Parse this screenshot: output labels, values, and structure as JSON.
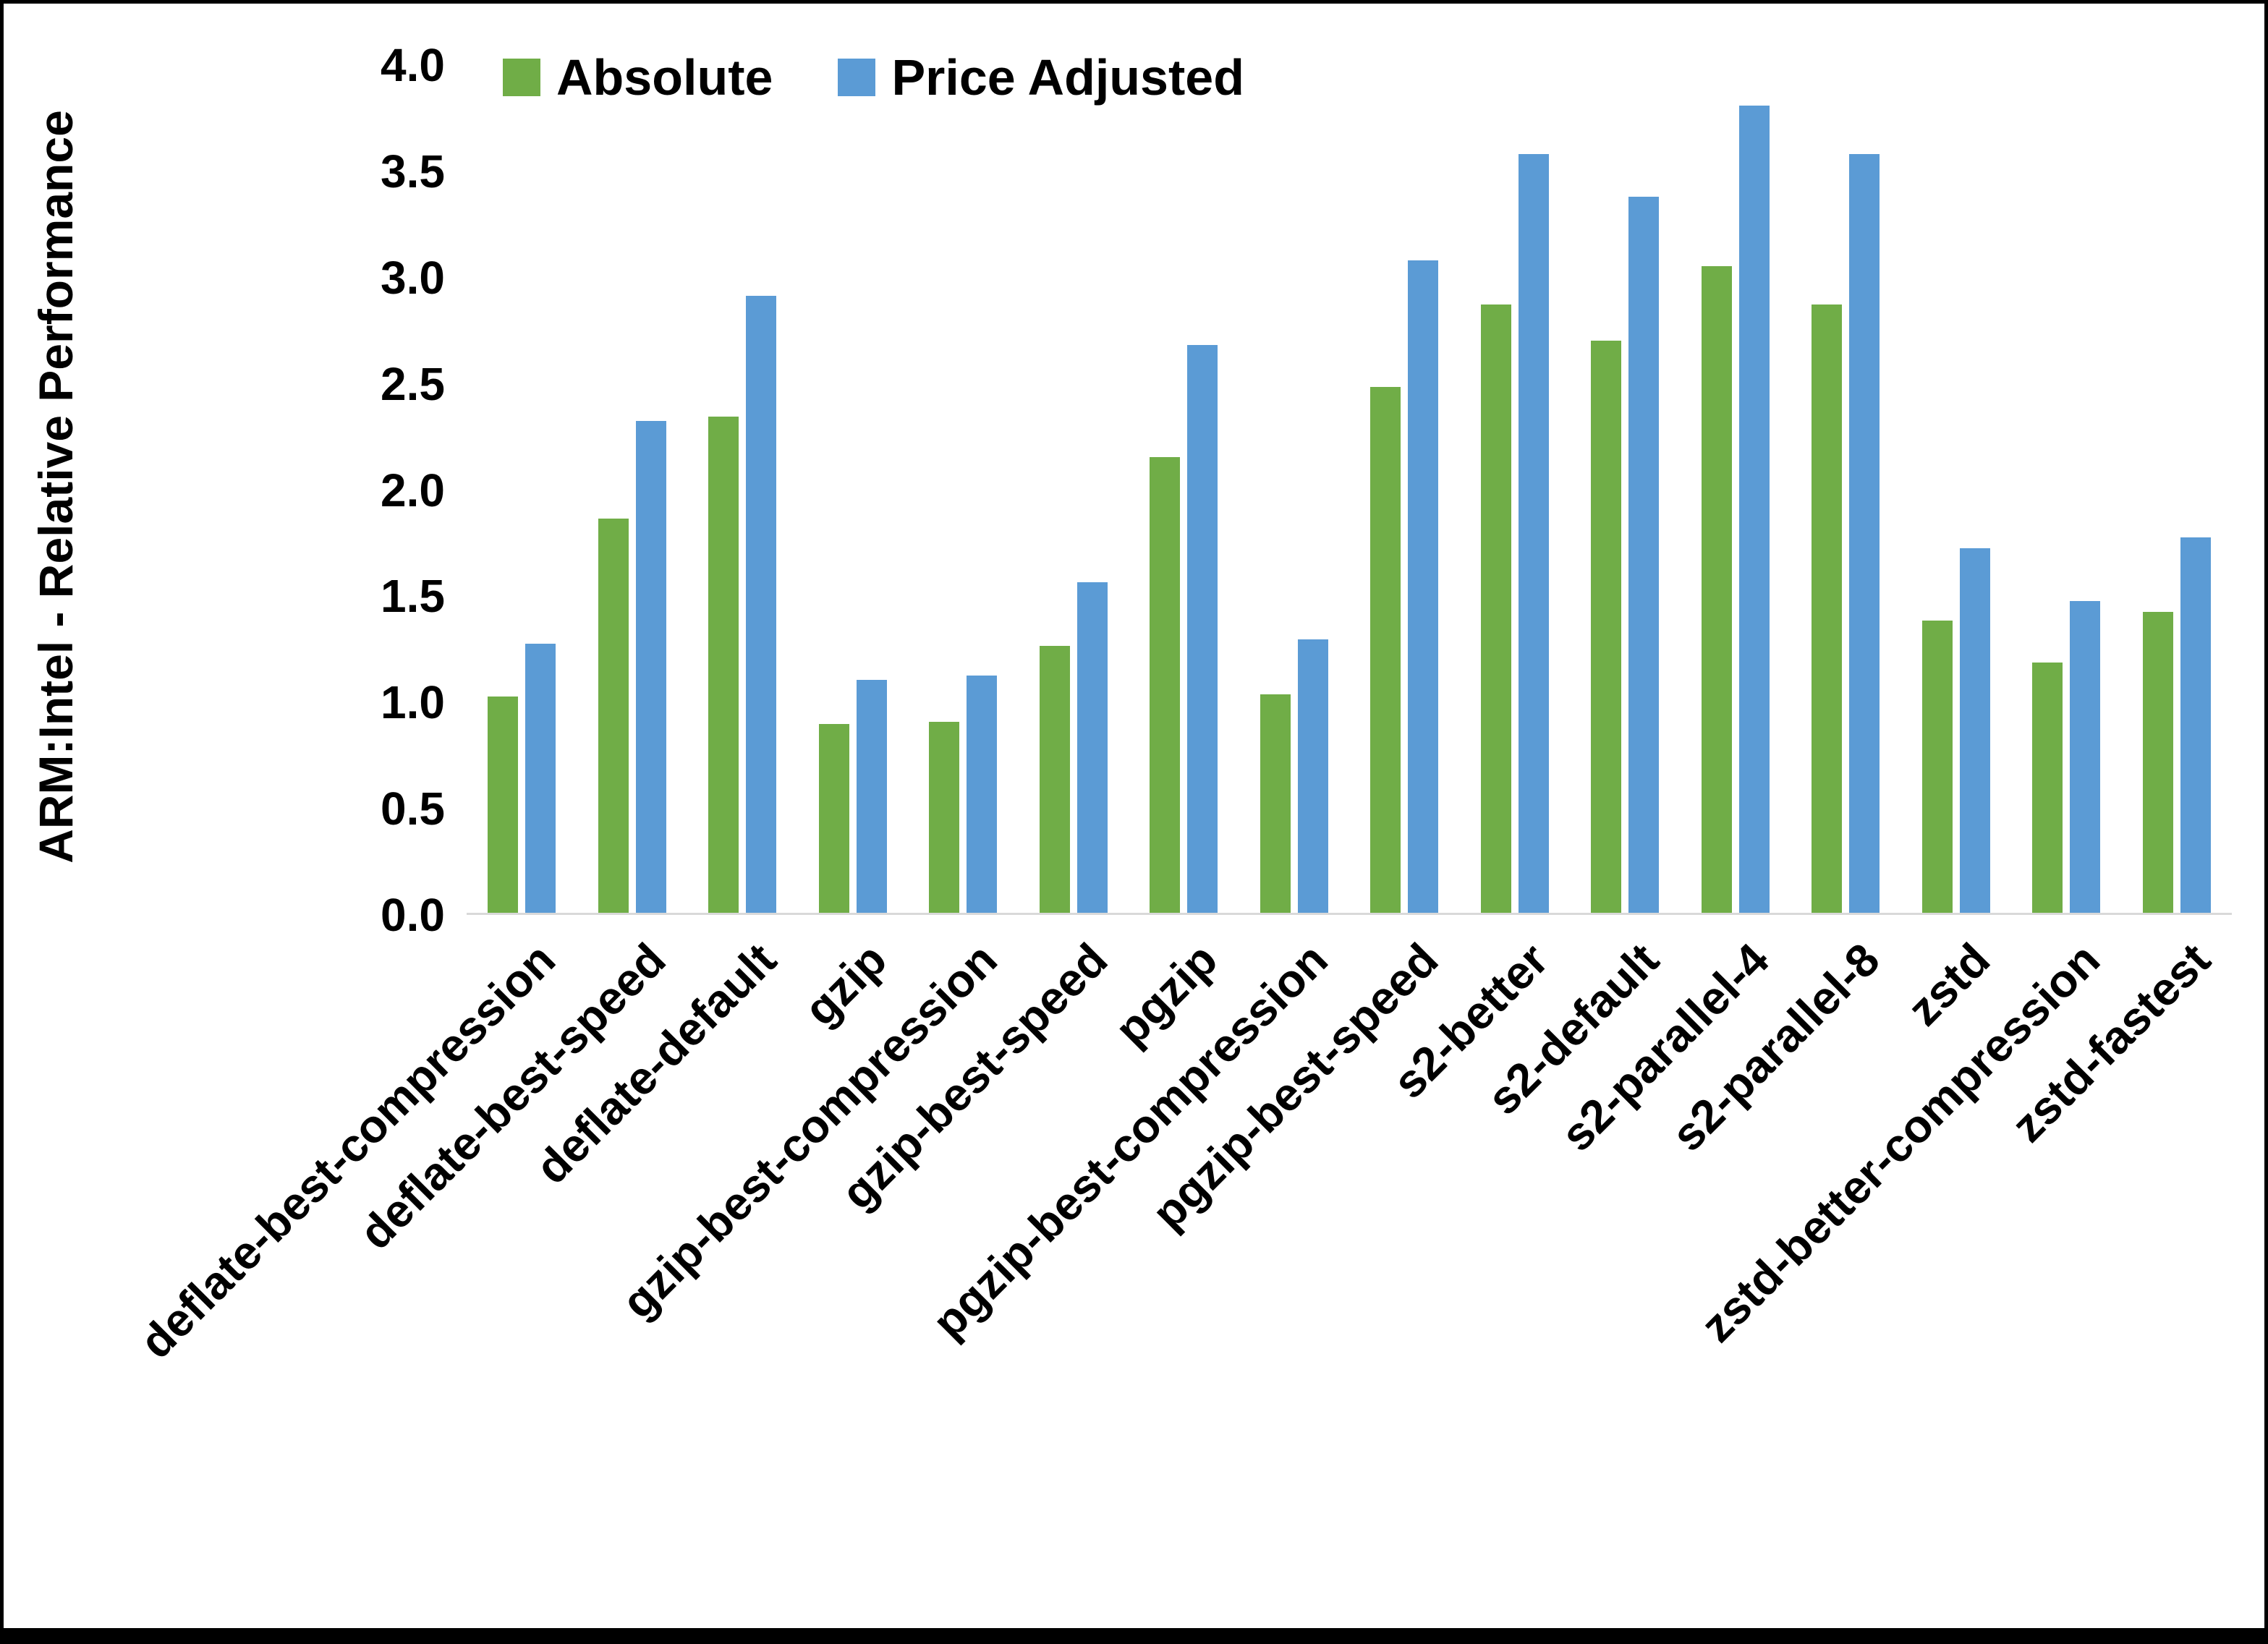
{
  "chart_data": {
    "type": "bar",
    "title": "",
    "xlabel": "",
    "ylabel": "ARM:Intel - Relative Performance",
    "ylim": [
      0,
      4.0
    ],
    "ytick_step": 0.5,
    "yticks": [
      "0.0",
      "0.5",
      "1.0",
      "1.5",
      "2.0",
      "2.5",
      "3.0",
      "3.5",
      "4.0"
    ],
    "grid": false,
    "legend_position": "top-center-inside",
    "categories": [
      "deflate-best-compression",
      "deflate-best-speed",
      "deflate-default",
      "gzip",
      "gzip-best-compression",
      "gzip-best-speed",
      "pgzip",
      "pgzip-best-compression",
      "pgzip-best-speed",
      "s2-better",
      "s2-default",
      "s2-parallel-4",
      "s2-parallel-8",
      "zstd",
      "zstd-better-compression",
      "zstd-fastest"
    ],
    "series": [
      {
        "name": "Absolute",
        "color": "#70AD47",
        "values": [
          1.02,
          1.86,
          2.34,
          0.89,
          0.9,
          1.26,
          2.15,
          1.03,
          2.48,
          2.87,
          2.7,
          3.05,
          2.87,
          1.38,
          1.18,
          1.42
        ]
      },
      {
        "name": "Price Adjusted",
        "color": "#5B9BD5",
        "values": [
          1.27,
          2.32,
          2.91,
          1.1,
          1.12,
          1.56,
          2.68,
          1.29,
          3.08,
          3.58,
          3.38,
          3.81,
          3.58,
          1.72,
          1.47,
          1.77
        ]
      }
    ]
  }
}
